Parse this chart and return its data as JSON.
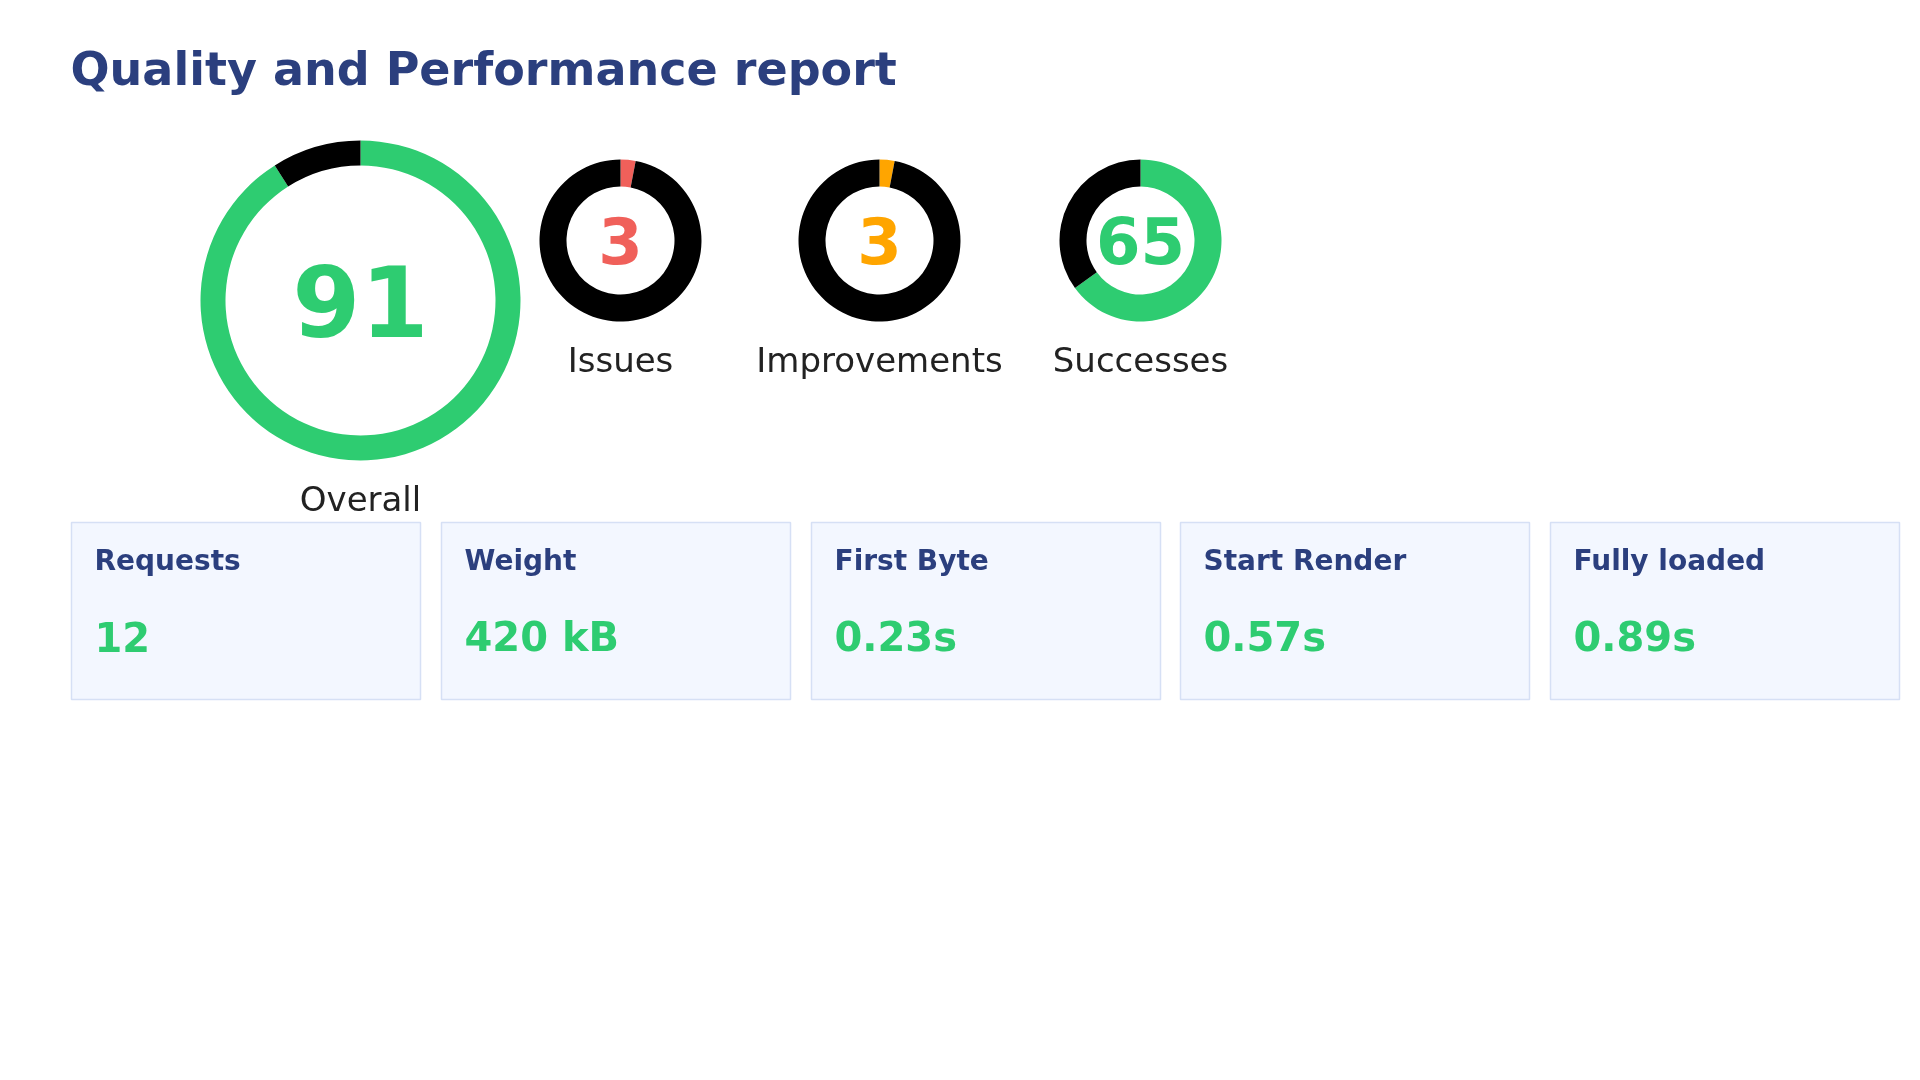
{
  "chart_data": [
    {
      "type": "other",
      "title": "Quality and Performance report"
    },
    {
      "type": "donut",
      "xlabel": "Overall",
      "categories": [
        null,
        null
      ],
      "values": [
        91,
        9
      ],
      "colors": [
        "#2ecc71",
        "#000000"
      ],
      "annotations": [
        "91"
      ]
    },
    {
      "type": "donut",
      "xlabel": "Issues",
      "categories": [
        null,
        null
      ],
      "values": [
        3,
        97
      ],
      "colors": [
        "#f0605a",
        "#000000"
      ],
      "annotations": [
        "3"
      ]
    },
    {
      "type": "donut",
      "xlabel": "Improvements",
      "categories": [
        null,
        null
      ],
      "values": [
        3,
        97
      ],
      "colors": [
        "#ffa500",
        "#000000"
      ],
      "annotations": [
        "3"
      ]
    },
    {
      "type": "donut",
      "xlabel": "Successes",
      "categories": [
        null,
        null
      ],
      "values": [
        65,
        35
      ],
      "colors": [
        "#2ecc71",
        "#000000"
      ],
      "annotations": [
        "65"
      ]
    },
    {
      "type": "other",
      "title": "Requests",
      "annotations": [
        "12"
      ]
    },
    {
      "type": "other",
      "title": "Weight",
      "annotations": [
        "420 kB"
      ]
    },
    {
      "type": "other",
      "title": "First Byte",
      "annotations": [
        "0.23s"
      ]
    },
    {
      "type": "other",
      "title": "Start Render",
      "annotations": [
        "0.57s"
      ]
    },
    {
      "type": "other",
      "title": "Fully loaded",
      "annotations": [
        "0.89s"
      ]
    }
  ]
}
